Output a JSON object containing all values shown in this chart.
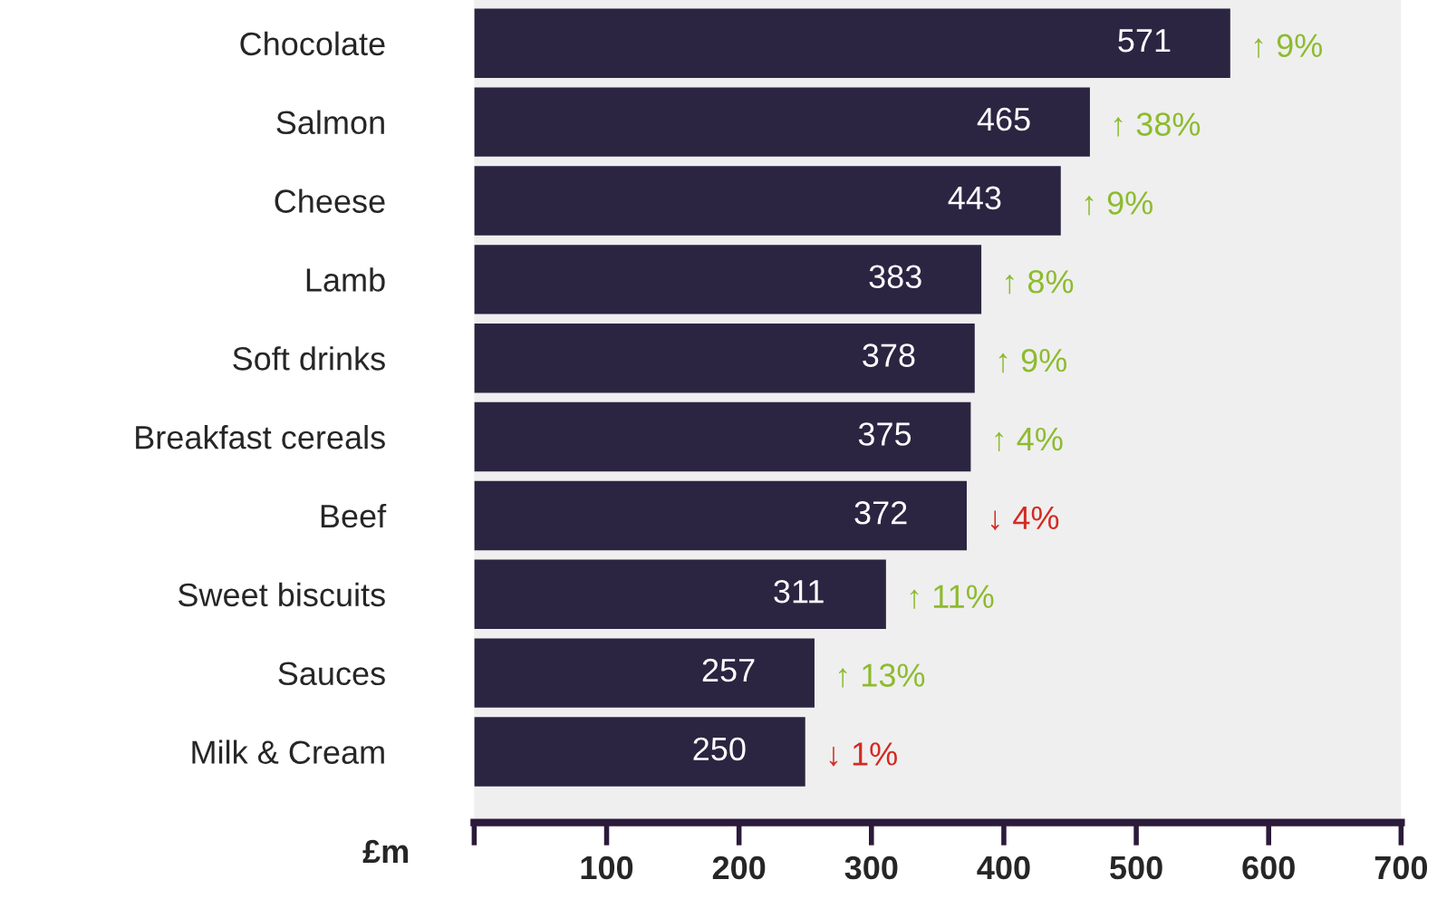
{
  "chart_data": {
    "type": "bar",
    "orientation": "horizontal",
    "xlabel": "£m",
    "categories": [
      "Chocolate",
      "Salmon",
      "Cheese",
      "Lamb",
      "Soft drinks",
      "Breakfast cereals",
      "Beef",
      "Sweet biscuits",
      "Sauces",
      "Milk & Cream"
    ],
    "values": [
      571,
      465,
      443,
      383,
      378,
      375,
      372,
      311,
      257,
      250
    ],
    "color": "#2b2542",
    "data_labels": true,
    "xlim": [
      0,
      700
    ],
    "xticks": [
      {
        "value": 0,
        "label": null
      },
      100,
      200,
      300,
      400,
      500,
      600,
      700
    ],
    "grid": false,
    "annotations": [
      {
        "text": "↑ 9%",
        "x": 571,
        "y": "Chocolate"
      },
      {
        "text": "↑ 38%",
        "x": 465,
        "y": "Salmon"
      },
      {
        "text": "↑ 9%",
        "x": 443,
        "y": "Cheese"
      },
      {
        "text": "↑ 8%",
        "x": 383,
        "y": "Lamb"
      },
      {
        "text": "↑ 9%",
        "x": 378,
        "y": "Soft drinks"
      },
      {
        "text": "↑ 4%",
        "x": 375,
        "y": "Breakfast cereals"
      },
      {
        "text": "↓ 4%",
        "x": 372,
        "y": "Beef"
      },
      {
        "text": "↑ 11%",
        "x": 311,
        "y": "Sweet biscuits"
      },
      {
        "text": "↑ 13%",
        "x": 257,
        "y": "Sauces"
      },
      {
        "text": "↓ 1%",
        "x": 250,
        "y": "Milk & Cream"
      }
    ]
  }
}
